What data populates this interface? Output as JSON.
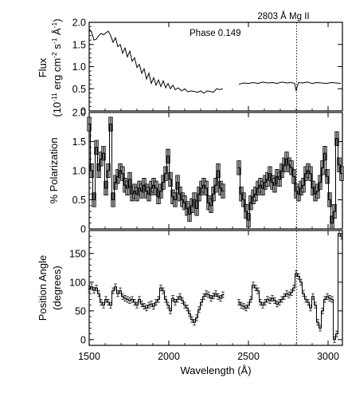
{
  "chart_data": [
    {
      "type": "line",
      "panel": "flux",
      "ylabel_line1": "Flux",
      "ylabel_line2": "(10",
      "ylabel_sup1": "-11",
      "ylabel_mid1": " erg cm",
      "ylabel_sup2": "-2",
      "ylabel_mid2": " s",
      "ylabel_sup3": "-1",
      "ylabel_mid3": " Å",
      "ylabel_sup4": "-1",
      "ylabel_end": ")",
      "ylim": [
        0,
        2.0
      ],
      "yticks": [
        "0",
        "0.5",
        "1.0",
        "1.5",
        "2.0"
      ],
      "annotation": "Phase 0.149",
      "series": [
        {
          "segment": 1,
          "x": [
            1500,
            1515,
            1530,
            1545,
            1560,
            1575,
            1590,
            1605,
            1620,
            1635,
            1650,
            1665,
            1680,
            1695,
            1710,
            1725,
            1740,
            1755,
            1770,
            1785,
            1800,
            1815,
            1830,
            1845,
            1860,
            1875,
            1890,
            1905,
            1920,
            1935,
            1950,
            1965,
            1980,
            1995,
            2010,
            2025,
            2040,
            2060,
            2080,
            2100,
            2120,
            2140,
            2160,
            2180,
            2200,
            2220,
            2240,
            2260,
            2280,
            2300,
            2320,
            2340
          ],
          "y": [
            1.85,
            1.78,
            1.6,
            1.62,
            1.7,
            1.75,
            1.72,
            1.76,
            1.8,
            1.7,
            1.55,
            1.65,
            1.45,
            1.5,
            1.3,
            1.42,
            1.22,
            1.35,
            1.12,
            1.2,
            0.98,
            1.05,
            0.85,
            0.95,
            0.72,
            0.85,
            0.62,
            0.75,
            0.58,
            0.7,
            0.55,
            0.68,
            0.52,
            0.62,
            0.5,
            0.58,
            0.48,
            0.52,
            0.45,
            0.5,
            0.43,
            0.45,
            0.44,
            0.42,
            0.45,
            0.4,
            0.45,
            0.44,
            0.42,
            0.5,
            0.48,
            0.5
          ]
        },
        {
          "segment": 2,
          "x": [
            2440,
            2470,
            2500,
            2530,
            2560,
            2590,
            2620,
            2650,
            2680,
            2710,
            2740,
            2770,
            2790,
            2800,
            2806,
            2815,
            2840,
            2870,
            2900,
            2930,
            2960,
            2990,
            3020,
            3050,
            3080
          ],
          "y": [
            0.6,
            0.63,
            0.62,
            0.64,
            0.62,
            0.65,
            0.63,
            0.64,
            0.62,
            0.65,
            0.63,
            0.64,
            0.62,
            0.45,
            0.55,
            0.64,
            0.63,
            0.65,
            0.62,
            0.64,
            0.63,
            0.62,
            0.64,
            0.63,
            0.62
          ]
        }
      ]
    },
    {
      "type": "line",
      "panel": "polarization",
      "ylabel": "% Polarization",
      "ylim": [
        0,
        2.0
      ],
      "yticks": [
        "0",
        "0.5",
        "1.0",
        "1.5",
        "2.0"
      ],
      "series": [
        {
          "segment": 1,
          "x": [
            1500,
            1515,
            1530,
            1545,
            1560,
            1575,
            1590,
            1605,
            1620,
            1635,
            1650,
            1665,
            1680,
            1695,
            1710,
            1725,
            1740,
            1755,
            1770,
            1785,
            1800,
            1815,
            1830,
            1845,
            1860,
            1875,
            1890,
            1905,
            1920,
            1935,
            1950,
            1965,
            1980,
            1995,
            2010,
            2025,
            2040,
            2055,
            2070,
            2085,
            2100,
            2115,
            2130,
            2145,
            2160,
            2175,
            2190,
            2205,
            2220,
            2235,
            2250,
            2265,
            2280,
            2295,
            2310,
            2325,
            2340
          ],
          "y": [
            1.8,
            1.0,
            0.5,
            1.4,
            1.0,
            1.2,
            1.3,
            0.7,
            1.0,
            1.8,
            0.5,
            0.8,
            0.9,
            1.0,
            0.95,
            0.75,
            0.7,
            0.85,
            0.6,
            0.65,
            0.6,
            0.7,
            0.65,
            0.75,
            0.65,
            0.6,
            0.7,
            0.75,
            0.7,
            0.55,
            0.65,
            0.8,
            0.95,
            1.25,
            0.85,
            0.55,
            0.5,
            0.8,
            0.6,
            0.5,
            0.45,
            0.35,
            0.25,
            0.4,
            0.5,
            0.35,
            0.6,
            0.7,
            0.75,
            0.7,
            0.45,
            0.4,
            0.6,
            0.75,
            1.0,
            0.7,
            0.65
          ]
        },
        {
          "segment": 2,
          "x": [
            2440,
            2455,
            2470,
            2485,
            2500,
            2515,
            2530,
            2545,
            2560,
            2575,
            2590,
            2605,
            2620,
            2635,
            2650,
            2665,
            2680,
            2695,
            2710,
            2725,
            2740,
            2755,
            2770,
            2785,
            2800,
            2815,
            2830,
            2845,
            2860,
            2875,
            2890,
            2905,
            2920,
            2935,
            2950,
            2965,
            2980,
            2995,
            3010,
            3025,
            3040,
            3055,
            3070,
            3085
          ],
          "y": [
            1.05,
            0.6,
            0.5,
            0.3,
            0.15,
            0.45,
            0.55,
            0.6,
            0.7,
            0.75,
            0.7,
            0.8,
            0.85,
            0.95,
            0.8,
            0.75,
            0.9,
            0.85,
            1.0,
            1.1,
            1.2,
            1.1,
            1.05,
            0.9,
            0.65,
            0.6,
            0.7,
            0.75,
            0.95,
            1.0,
            0.95,
            0.7,
            0.6,
            0.65,
            0.8,
            1.05,
            1.3,
            0.9,
            0.5,
            0.1,
            0.3,
            1.55,
            1.1,
            0.95
          ]
        }
      ]
    },
    {
      "type": "line",
      "panel": "position-angle",
      "ylabel_line1": "Position Angle",
      "ylabel_line2": "(degrees)",
      "xlabel": "Wavelength (Å)",
      "xlim": [
        1500,
        3090
      ],
      "xticks": [
        "1500",
        "2000",
        "2500",
        "3000"
      ],
      "ylim": [
        -10,
        190
      ],
      "yticks": [
        "0",
        "50",
        "100",
        "150"
      ],
      "series": [
        {
          "segment": 1,
          "x": [
            1500,
            1515,
            1530,
            1545,
            1560,
            1575,
            1590,
            1605,
            1620,
            1635,
            1650,
            1665,
            1680,
            1695,
            1710,
            1725,
            1740,
            1755,
            1770,
            1785,
            1800,
            1815,
            1830,
            1845,
            1860,
            1875,
            1890,
            1905,
            1920,
            1935,
            1950,
            1965,
            1980,
            1995,
            2010,
            2025,
            2040,
            2055,
            2070,
            2085,
            2100,
            2115,
            2130,
            2145,
            2160,
            2175,
            2190,
            2205,
            2220,
            2235,
            2250,
            2265,
            2280,
            2295,
            2310,
            2325,
            2340
          ],
          "y": [
            88,
            92,
            86,
            90,
            80,
            65,
            60,
            70,
            65,
            60,
            85,
            92,
            80,
            85,
            75,
            72,
            70,
            68,
            70,
            65,
            60,
            70,
            62,
            58,
            55,
            60,
            62,
            58,
            65,
            70,
            90,
            85,
            70,
            60,
            50,
            72,
            65,
            70,
            75,
            68,
            60,
            55,
            45,
            35,
            30,
            38,
            52,
            65,
            75,
            80,
            78,
            72,
            76,
            80,
            75,
            72,
            78
          ]
        },
        {
          "segment": 2,
          "x": [
            2440,
            2455,
            2470,
            2485,
            2500,
            2515,
            2530,
            2545,
            2560,
            2575,
            2590,
            2605,
            2620,
            2635,
            2650,
            2665,
            2680,
            2695,
            2710,
            2725,
            2740,
            2755,
            2770,
            2785,
            2800,
            2815,
            2830,
            2845,
            2860,
            2875,
            2890,
            2905,
            2920,
            2935,
            2950,
            2965,
            2980,
            2995,
            3010,
            3025,
            3040,
            3055,
            3070,
            3085
          ],
          "y": [
            65,
            60,
            58,
            55,
            60,
            70,
            95,
            90,
            85,
            65,
            60,
            65,
            70,
            68,
            72,
            68,
            62,
            65,
            70,
            75,
            80,
            78,
            82,
            90,
            115,
            110,
            100,
            80,
            70,
            65,
            55,
            75,
            60,
            30,
            20,
            50,
            70,
            75,
            72,
            70,
            0,
            10,
            185,
            180
          ]
        }
      ]
    }
  ],
  "marker": {
    "wavelength": 2803,
    "label": "2803 Å Mg II"
  },
  "colors": {
    "errorbar_fill": "#a0a0a0",
    "line": "#000000"
  }
}
